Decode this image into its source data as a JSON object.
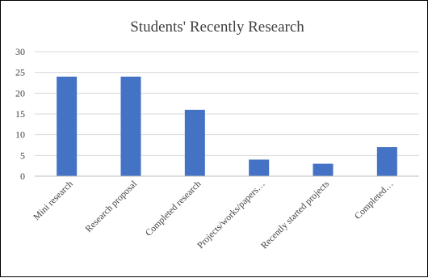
{
  "chart_data": {
    "type": "bar",
    "title": "Students' Recently Research",
    "categories": [
      "Mini research",
      "Research proposal",
      "Completed research",
      "Projects/works/papers…",
      "Recently started projects",
      "Completed…"
    ],
    "values": [
      24,
      24,
      16,
      4,
      3,
      7
    ],
    "ylim": [
      0,
      30
    ],
    "yticks": [
      0,
      5,
      10,
      15,
      20,
      25,
      30
    ],
    "grid": true,
    "legend": "none",
    "bar_color": "#4472c4"
  }
}
